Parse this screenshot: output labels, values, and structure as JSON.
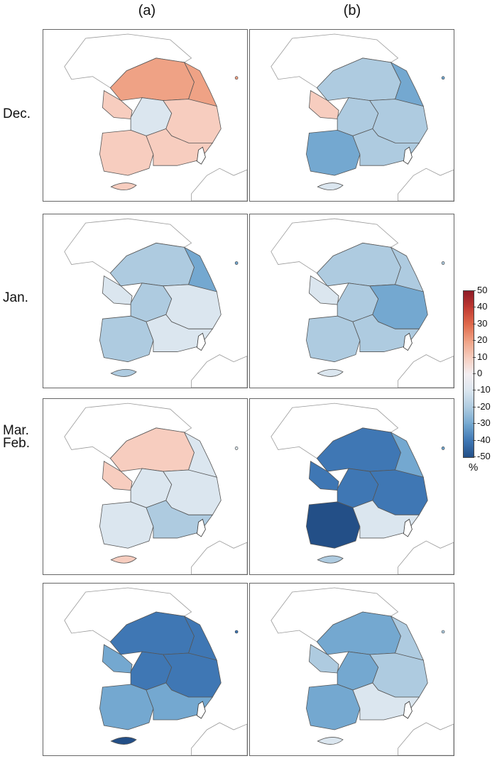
{
  "columns": [
    {
      "label": "(a)"
    },
    {
      "label": "(b)"
    }
  ],
  "rows": [
    {
      "label": "Dec.",
      "a": {
        "north": 25,
        "northeast": 20,
        "west": 3,
        "center": -5,
        "east": 7,
        "southwest": 6,
        "southeast": 7,
        "jeju": 3
      },
      "b": {
        "north": -20,
        "northeast": -25,
        "west": 5,
        "center": -15,
        "east": -15,
        "southwest": -25,
        "southeast": -20,
        "jeju": -10
      }
    },
    {
      "label": "Jan.",
      "a": {
        "north": -20,
        "northeast": -30,
        "west": -10,
        "center": -15,
        "east": -10,
        "southwest": -15,
        "southeast": -10,
        "jeju": -20
      },
      "b": {
        "north": -15,
        "northeast": -20,
        "west": -10,
        "center": -15,
        "east": -25,
        "southwest": -15,
        "southeast": -15,
        "jeju": -10
      }
    },
    {
      "label": "Feb.",
      "a": {
        "north": 5,
        "northeast": -5,
        "west": 5,
        "center": -10,
        "east": -10,
        "southwest": -10,
        "southeast": -20,
        "jeju": 3
      },
      "b": {
        "north": -35,
        "northeast": -30,
        "west": -40,
        "center": -35,
        "east": -35,
        "southwest": -45,
        "southeast": -5,
        "jeju": -20
      }
    },
    {
      "label": "Mar.",
      "a": {
        "north": -35,
        "northeast": -40,
        "west": -30,
        "center": -35,
        "east": -35,
        "southwest": -30,
        "southeast": -30,
        "jeju": -45
      },
      "b": {
        "north": -25,
        "northeast": -20,
        "west": -20,
        "center": -30,
        "east": -20,
        "southwest": -30,
        "southeast": -10,
        "jeju": -5
      }
    }
  ],
  "colorbar": {
    "ticks": [
      "50",
      "40",
      "30",
      "20",
      "10",
      "0",
      "-10",
      "-20",
      "-30",
      "-40",
      "-50"
    ],
    "unit": "%",
    "colors": [
      "#8e1b26",
      "#c03a32",
      "#df6a4c",
      "#efa285",
      "#f7cdbf",
      "#f4eef1",
      "#dbe6ef",
      "#aecbe0",
      "#74a8d0",
      "#3f77b4",
      "#234f87"
    ]
  }
}
